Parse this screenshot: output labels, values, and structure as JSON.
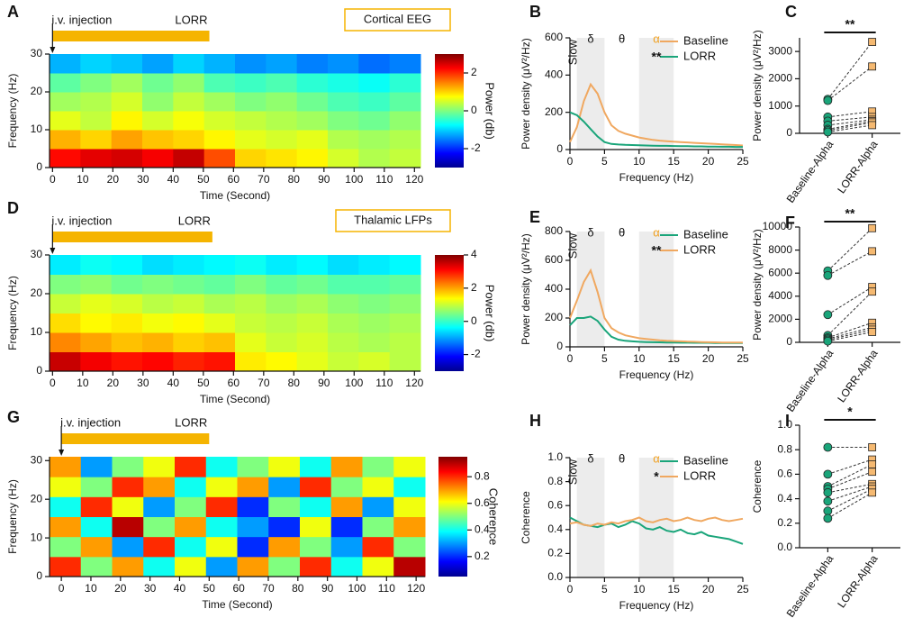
{
  "chart_data": [
    {
      "type": "heatmap",
      "panel": "A",
      "xlabel": "Time (Second)",
      "ylabel": "Frequency (Hz)",
      "colorbar_label": "Power (db)",
      "injection_label": "i.v. injection",
      "lorr_label": "LORR",
      "lorr_time": 52,
      "region_label": "Cortical EEG",
      "xlim": [
        -1,
        122
      ],
      "xticks": [
        0,
        10,
        20,
        30,
        40,
        50,
        60,
        70,
        80,
        90,
        100,
        110,
        120
      ],
      "ylim": [
        0,
        30
      ],
      "yticks": [
        0,
        10,
        20,
        30
      ],
      "zlim": [
        -3,
        3
      ],
      "zticks": [
        -2,
        0,
        2
      ],
      "values": [
        [
          2.2,
          2.4,
          2.5,
          2.3,
          2.6,
          1.8,
          1.0,
          0.9,
          0.8,
          0.5,
          0.3,
          0.4
        ],
        [
          1.2,
          1.0,
          1.3,
          1.1,
          1.0,
          0.8,
          0.6,
          0.5,
          0.6,
          0.3,
          0.2,
          0.3
        ],
        [
          0.6,
          0.4,
          0.8,
          0.5,
          0.7,
          0.5,
          0.4,
          0.3,
          0.2,
          0.0,
          -0.1,
          0.1
        ],
        [
          0.2,
          0.3,
          0.5,
          0.1,
          0.4,
          0.2,
          0.0,
          0.1,
          -0.1,
          -0.3,
          -0.4,
          -0.2
        ],
        [
          -0.2,
          0.0,
          0.2,
          -0.1,
          0.1,
          -0.3,
          -0.4,
          -0.3,
          -0.5,
          -0.6,
          -0.7,
          -0.5
        ],
        [
          -1.2,
          -1.0,
          -1.1,
          -1.3,
          -1.0,
          -1.2,
          -1.4,
          -1.3,
          -1.5,
          -1.4,
          -1.6,
          -1.5
        ]
      ]
    },
    {
      "type": "line",
      "panel": "B",
      "xlabel": "Frequency (Hz)",
      "ylabel": "Power density (μV²/Hz)",
      "band_labels": [
        "Slow",
        "δ",
        "θ",
        "α"
      ],
      "significance": "**",
      "shaded": [
        [
          1,
          5
        ],
        [
          10,
          15
        ]
      ],
      "x": [
        0,
        1,
        2,
        3,
        4,
        5,
        6,
        7,
        8,
        9,
        10,
        11,
        12,
        13,
        14,
        15,
        16,
        17,
        18,
        19,
        20,
        21,
        22,
        23,
        24,
        25
      ],
      "xlim": [
        0,
        25
      ],
      "xticks": [
        0,
        5,
        10,
        15,
        20,
        25
      ],
      "ylim": [
        0,
        600
      ],
      "yticks": [
        0,
        200,
        400,
        600
      ],
      "series": [
        {
          "name": "Baseline",
          "color": "#f0a860",
          "values": [
            40,
            120,
            260,
            350,
            300,
            200,
            130,
            100,
            85,
            75,
            65,
            58,
            52,
            48,
            45,
            42,
            40,
            38,
            36,
            34,
            32,
            30,
            28,
            26,
            24,
            22
          ]
        },
        {
          "name": "LORR",
          "color": "#1aa57a",
          "values": [
            200,
            185,
            150,
            110,
            70,
            40,
            30,
            27,
            25,
            24,
            23,
            22,
            21,
            20,
            20,
            19,
            18,
            18,
            17,
            17,
            16,
            16,
            15,
            15,
            14,
            14
          ]
        }
      ]
    },
    {
      "type": "dot",
      "panel": "C",
      "ylabel": "Power density (μV²/Hz)",
      "significance": "**",
      "categories": [
        "Baseline-Alpha",
        "LORR-Alpha"
      ],
      "colors": [
        "#1aa57a",
        "#f5b971"
      ],
      "ylim": [
        0,
        3500
      ],
      "yticks": [
        0,
        1000,
        2000,
        3000
      ],
      "values": [
        [
          1250,
          1200,
          600,
          450,
          300,
          150,
          100,
          50
        ],
        [
          3350,
          2450,
          800,
          600,
          500,
          450,
          400,
          300
        ]
      ]
    },
    {
      "type": "heatmap",
      "panel": "D",
      "xlabel": "Time (Second)",
      "ylabel": "Frequency (Hz)",
      "colorbar_label": "Power (db)",
      "injection_label": "i.v. injection",
      "lorr_label": "LORR",
      "lorr_time": 53,
      "region_label": "Thalamic LFPs",
      "xlim": [
        -1,
        122
      ],
      "xticks": [
        0,
        10,
        20,
        30,
        40,
        50,
        60,
        70,
        80,
        90,
        100,
        110,
        120
      ],
      "ylim": [
        0,
        30
      ],
      "yticks": [
        0,
        10,
        20,
        30
      ],
      "zlim": [
        -3,
        4
      ],
      "zticks": [
        -2,
        0,
        2,
        4
      ],
      "values": [
        [
          3.5,
          3.2,
          3.0,
          3.1,
          2.9,
          3.0,
          1.5,
          1.4,
          1.2,
          1.0,
          1.1,
          0.9
        ],
        [
          2.2,
          2.0,
          1.8,
          1.9,
          1.7,
          1.8,
          1.2,
          1.0,
          1.1,
          0.9,
          0.8,
          0.9
        ],
        [
          1.6,
          1.4,
          1.5,
          1.3,
          1.4,
          1.2,
          1.0,
          0.9,
          1.0,
          0.8,
          0.7,
          0.8
        ],
        [
          1.0,
          1.2,
          1.1,
          0.9,
          1.0,
          0.8,
          0.9,
          0.7,
          0.8,
          0.6,
          0.5,
          0.6
        ],
        [
          0.5,
          0.6,
          0.4,
          0.5,
          0.4,
          0.3,
          0.5,
          0.3,
          0.4,
          0.2,
          0.2,
          0.3
        ],
        [
          -0.5,
          -0.3,
          -0.4,
          -0.6,
          -0.5,
          -0.4,
          -0.3,
          -0.5,
          -0.4,
          -0.6,
          -0.5,
          -0.4
        ]
      ]
    },
    {
      "type": "line",
      "panel": "E",
      "xlabel": "Frequency (Hz)",
      "ylabel": "Power density (μV²/Hz)",
      "band_labels": [
        "Slow",
        "δ",
        "θ",
        "α"
      ],
      "significance": "**",
      "shaded": [
        [
          1,
          5
        ],
        [
          10,
          15
        ]
      ],
      "x": [
        0,
        1,
        2,
        3,
        4,
        5,
        6,
        7,
        8,
        9,
        10,
        11,
        12,
        13,
        14,
        15,
        16,
        17,
        18,
        19,
        20,
        21,
        22,
        23,
        24,
        25
      ],
      "xlim": [
        0,
        25
      ],
      "xticks": [
        0,
        5,
        10,
        15,
        20,
        25
      ],
      "ylim": [
        0,
        800
      ],
      "yticks": [
        0,
        200,
        400,
        600,
        800
      ],
      "series": [
        {
          "name": "Baseline",
          "color": "#1aa57a",
          "values": [
            150,
            200,
            200,
            210,
            180,
            120,
            70,
            50,
            42,
            38,
            35,
            33,
            32,
            31,
            30,
            30,
            29,
            29,
            28,
            28,
            28,
            27,
            27,
            27,
            26,
            26
          ]
        },
        {
          "name": "LORR",
          "color": "#f0a860",
          "values": [
            200,
            320,
            450,
            530,
            380,
            200,
            130,
            100,
            80,
            70,
            60,
            55,
            50,
            45,
            42,
            40,
            38,
            36,
            35,
            33,
            32,
            31,
            30,
            30,
            30,
            30
          ]
        }
      ]
    },
    {
      "type": "dot",
      "panel": "F",
      "ylabel": "Power density (μV²/Hz)",
      "significance": "**",
      "categories": [
        "Baseline-Alpha",
        "LORR-Alpha"
      ],
      "colors": [
        "#1aa57a",
        "#f5b971"
      ],
      "ylim": [
        0,
        10000
      ],
      "yticks": [
        0,
        2000,
        4000,
        6000,
        8000,
        10000
      ],
      "values": [
        [
          6200,
          5800,
          2400,
          600,
          400,
          300,
          200,
          100
        ],
        [
          9900,
          7900,
          4800,
          4400,
          1700,
          1300,
          1100,
          900
        ]
      ]
    },
    {
      "type": "heatmap",
      "panel": "G",
      "xlabel": "Time (Second)",
      "ylabel": "Frequency (Hz)",
      "colorbar_label": "Coherence",
      "injection_label": "i.v. injection",
      "lorr_label": "LORR",
      "lorr_time": 50,
      "xlim": [
        -4,
        123
      ],
      "xticks": [
        0,
        10,
        20,
        30,
        40,
        50,
        60,
        70,
        80,
        90,
        100,
        110,
        120
      ],
      "ylim": [
        0,
        31
      ],
      "yticks": [
        0,
        10,
        20,
        30
      ],
      "zlim": [
        0.05,
        0.95
      ],
      "zticks": [
        0.2,
        0.4,
        0.6,
        0.8
      ],
      "values": [
        [
          0.8,
          0.5,
          0.7,
          0.4,
          0.6,
          0.3,
          0.7,
          0.5,
          0.8,
          0.4,
          0.6,
          0.9
        ],
        [
          0.5,
          0.7,
          0.3,
          0.8,
          0.4,
          0.6,
          0.2,
          0.7,
          0.5,
          0.3,
          0.8,
          0.5
        ],
        [
          0.7,
          0.4,
          0.9,
          0.5,
          0.7,
          0.4,
          0.3,
          0.2,
          0.6,
          0.2,
          0.5,
          0.7
        ],
        [
          0.4,
          0.8,
          0.6,
          0.3,
          0.5,
          0.8,
          0.2,
          0.5,
          0.4,
          0.7,
          0.3,
          0.6
        ],
        [
          0.6,
          0.5,
          0.8,
          0.7,
          0.4,
          0.6,
          0.7,
          0.3,
          0.8,
          0.5,
          0.6,
          0.4
        ],
        [
          0.7,
          0.3,
          0.5,
          0.6,
          0.8,
          0.4,
          0.5,
          0.6,
          0.4,
          0.7,
          0.5,
          0.6
        ]
      ]
    },
    {
      "type": "line",
      "panel": "H",
      "xlabel": "Frequency (Hz)",
      "ylabel": "Coherence",
      "band_labels": [
        "Slow",
        "δ",
        "θ",
        "α"
      ],
      "significance": "*",
      "shaded": [
        [
          1,
          5
        ],
        [
          10,
          15
        ]
      ],
      "x": [
        0,
        1,
        2,
        3,
        4,
        5,
        6,
        7,
        8,
        9,
        10,
        11,
        12,
        13,
        14,
        15,
        16,
        17,
        18,
        19,
        20,
        21,
        22,
        23,
        24,
        25
      ],
      "xlim": [
        0,
        25
      ],
      "xticks": [
        0,
        5,
        10,
        15,
        20,
        25
      ],
      "ylim": [
        0,
        1
      ],
      "yticks": [
        {
          "value": 0,
          "label": "0.0"
        },
        0.2,
        0.4,
        0.6,
        0.8,
        {
          "value": 1,
          "label": "1.0"
        }
      ],
      "series": [
        {
          "name": "Baseline",
          "color": "#1aa57a",
          "values": [
            0.5,
            0.47,
            0.44,
            0.43,
            0.42,
            0.44,
            0.45,
            0.42,
            0.44,
            0.47,
            0.45,
            0.41,
            0.4,
            0.42,
            0.39,
            0.38,
            0.4,
            0.37,
            0.36,
            0.38,
            0.35,
            0.34,
            0.33,
            0.32,
            0.3,
            0.28
          ]
        },
        {
          "name": "LORR",
          "color": "#f0a860",
          "values": [
            0.45,
            0.46,
            0.44,
            0.43,
            0.45,
            0.44,
            0.46,
            0.45,
            0.47,
            0.48,
            0.5,
            0.47,
            0.46,
            0.48,
            0.49,
            0.47,
            0.48,
            0.5,
            0.48,
            0.47,
            0.49,
            0.5,
            0.48,
            0.47,
            0.48,
            0.49
          ]
        }
      ]
    },
    {
      "type": "dot",
      "panel": "I",
      "ylabel": "Coherence",
      "significance": "*",
      "categories": [
        "Baseline-Alpha",
        "LORR-Alpha"
      ],
      "colors": [
        "#1aa57a",
        "#f5b971"
      ],
      "ylim": [
        0,
        1
      ],
      "yticks": [
        {
          "value": 0,
          "label": "0.0"
        },
        0.2,
        0.4,
        0.6,
        0.8,
        {
          "value": 1,
          "label": "1.0"
        }
      ],
      "values": [
        [
          0.82,
          0.6,
          0.5,
          0.48,
          0.45,
          0.38,
          0.3,
          0.24
        ],
        [
          0.82,
          0.72,
          0.68,
          0.62,
          0.52,
          0.5,
          0.48,
          0.45
        ]
      ]
    }
  ]
}
